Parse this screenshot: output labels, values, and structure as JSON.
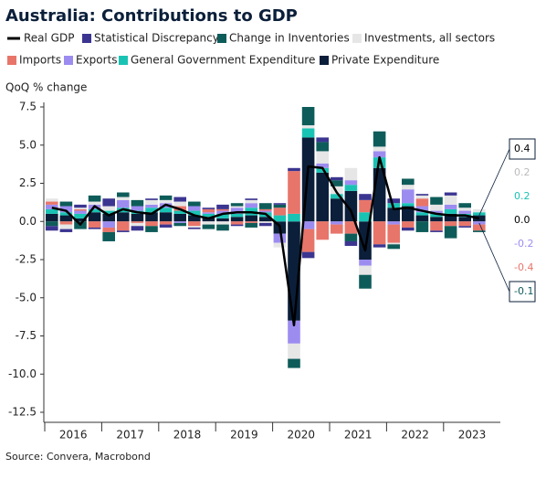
{
  "chart_data": {
    "type": "stacked_bar_line",
    "title": "Australia: Contributions to GDP",
    "y_label": "QoQ % change",
    "source": "Source: Convera, Macrobond",
    "categories": [
      "2016",
      null,
      null,
      null,
      "2017",
      null,
      null,
      null,
      "2018",
      null,
      null,
      null,
      "2019",
      null,
      null,
      null,
      "2020",
      null,
      null,
      null,
      "2021",
      null,
      null,
      null,
      "2022",
      null,
      null,
      null,
      "2023",
      null,
      null
    ],
    "ylim": [
      -12.5,
      7.5
    ],
    "yticks": [
      {
        "value": 7.5,
        "label": "7.5"
      },
      {
        "value": 5,
        "label": "5.0"
      },
      {
        "value": 2.5,
        "label": "2.5"
      },
      {
        "value": 0,
        "label": "0.0"
      },
      {
        "value": -2.5,
        "label": "-2.5"
      },
      {
        "value": -5,
        "label": "-5.0"
      },
      {
        "value": -7.5,
        "label": "-7.5"
      },
      {
        "value": -10,
        "label": "-10.0"
      },
      {
        "value": -12.5,
        "label": "-12.5"
      }
    ],
    "series": [
      {
        "name": "Real GDP",
        "color": "#000000",
        "kind": "line",
        "values": [
          0.9,
          0.7,
          -0.2,
          1.0,
          0.4,
          0.8,
          0.6,
          0.5,
          1.1,
          0.8,
          0.4,
          0.2,
          0.5,
          0.6,
          0.6,
          0.5,
          -0.3,
          -6.8,
          3.6,
          3.5,
          1.9,
          0.7,
          -1.9,
          4.2,
          0.8,
          0.9,
          0.7,
          0.5,
          0.4,
          0.4,
          0.2
        ]
      },
      {
        "name": "Statistical Discrepancy",
        "color": "#3b3591",
        "kind": "bar",
        "values": [
          -0.3,
          -0.2,
          0.2,
          -0.1,
          0.5,
          -0.1,
          -0.3,
          0.1,
          -0.2,
          0.3,
          -0.1,
          0.1,
          0.3,
          -0.1,
          0.1,
          -0.2,
          0.1,
          0.2,
          -0.4,
          0.3,
          0.2,
          -0.3,
          0.4,
          -0.2,
          0.3,
          -0.2,
          0.1,
          -0.1,
          0.2,
          -0.1,
          0
        ],
        "value_labels": [
          null,
          null,
          null,
          null,
          null,
          null,
          null,
          null,
          null,
          null,
          null,
          null,
          null,
          null,
          null,
          null,
          null,
          null,
          null,
          null,
          null,
          null,
          null,
          null,
          null,
          null,
          null,
          null,
          null,
          null,
          "0.0"
        ]
      },
      {
        "name": "Change in Inventories",
        "color": "#0e5c5a",
        "kind": "bar",
        "values": [
          -0.3,
          0.3,
          -0.5,
          0.4,
          -0.6,
          0.3,
          0.4,
          -0.4,
          0.3,
          -0.2,
          0.3,
          -0.3,
          -0.4,
          0.2,
          -0.3,
          0.4,
          0.2,
          -0.6,
          1.2,
          0.6,
          0.4,
          -0.5,
          -0.9,
          1.0,
          -0.3,
          0.4,
          -0.7,
          0.5,
          -0.8,
          0.3,
          -0.1
        ]
      },
      {
        "name": "Investments, all sectors",
        "color": "#e6e6e6",
        "kind": "bar",
        "values": [
          0.2,
          -0.3,
          0.1,
          0.2,
          0.3,
          0.2,
          -0.2,
          0.3,
          0.2,
          0.3,
          -0.1,
          -0.2,
          -0.2,
          0.1,
          0.2,
          -0.1,
          -0.3,
          -1.0,
          0.2,
          0.8,
          0.5,
          0.8,
          -0.6,
          0.3,
          -0.1,
          0.3,
          0.2,
          0.4,
          0.6,
          0.2,
          0.2
        ]
      },
      {
        "name": "Imports",
        "color": "#e8756a",
        "kind": "bar",
        "values": [
          0.2,
          -0.2,
          0.1,
          -0.4,
          -0.3,
          -0.6,
          -0.1,
          -0.3,
          -0.2,
          0.3,
          -0.3,
          0.2,
          0.1,
          -0.2,
          -0.1,
          0.1,
          0.5,
          2.8,
          -1.5,
          -1.2,
          -0.6,
          -0.8,
          0.8,
          -1.5,
          -1.2,
          -0.4,
          0.5,
          -0.6,
          -0.3,
          -0.3,
          -0.4
        ]
      },
      {
        "name": "Exports",
        "color": "#9d8cf0",
        "kind": "bar",
        "values": [
          0.3,
          0.4,
          0.2,
          0.3,
          -0.4,
          0.5,
          0.3,
          0.2,
          0.3,
          -0.1,
          0.3,
          0.1,
          0.2,
          0.4,
          0.3,
          0.1,
          -0.6,
          -1.5,
          -0.5,
          0.3,
          -0.2,
          0.3,
          -0.4,
          0.4,
          -0.2,
          0.9,
          0.4,
          0.2,
          0.3,
          0.2,
          -0.2
        ]
      },
      {
        "name": "General Government Expenditure",
        "color": "#19c3b4",
        "kind": "bar",
        "values": [
          0.3,
          0.2,
          0.3,
          0.2,
          0.2,
          0.3,
          0.2,
          0.3,
          0.3,
          0.2,
          0.3,
          0.2,
          0.3,
          0.2,
          0.5,
          0.3,
          0.4,
          0.5,
          0.6,
          0.3,
          0.3,
          0.4,
          0.6,
          0.7,
          0.3,
          0.2,
          0.2,
          0.2,
          0.3,
          0.2,
          0.2
        ]
      },
      {
        "name": "Private Expenditure",
        "color": "#0b1f3a",
        "kind": "bar",
        "values": [
          0.5,
          0.4,
          0.2,
          0.6,
          0.5,
          0.6,
          0.5,
          0.6,
          0.6,
          0.5,
          0.4,
          0.3,
          0.2,
          0.3,
          0.4,
          0.3,
          -0.8,
          -6.5,
          5.5,
          3.2,
          1.5,
          2.0,
          -2.5,
          3.5,
          0.9,
          1.0,
          0.4,
          0.3,
          0.5,
          0.3,
          0.4
        ]
      }
    ]
  }
}
